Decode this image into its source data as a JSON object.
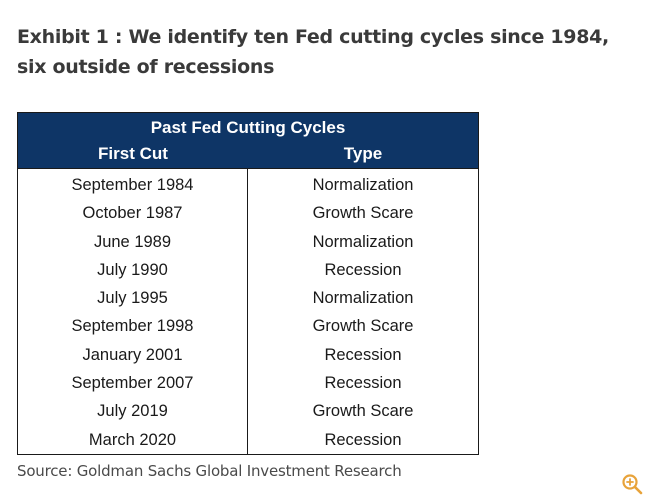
{
  "exhibit": {
    "title": "Exhibit 1 : We identify ten Fed cutting cycles since 1984, six outside of recessions"
  },
  "table": {
    "caption": "Past Fed Cutting Cycles",
    "columns": [
      "First Cut",
      "Type"
    ],
    "rows": [
      {
        "first_cut": "September 1984",
        "type": "Normalization"
      },
      {
        "first_cut": "October 1987",
        "type": "Growth Scare"
      },
      {
        "first_cut": "June 1989",
        "type": "Normalization"
      },
      {
        "first_cut": "July 1990",
        "type": "Recession"
      },
      {
        "first_cut": "July 1995",
        "type": "Normalization"
      },
      {
        "first_cut": "September 1998",
        "type": "Growth Scare"
      },
      {
        "first_cut": "January 2001",
        "type": "Recession"
      },
      {
        "first_cut": "September 2007",
        "type": "Recession"
      },
      {
        "first_cut": "July 2019",
        "type": "Growth Scare"
      },
      {
        "first_cut": "March 2020",
        "type": "Recession"
      }
    ],
    "colors": {
      "header_bg": "#0e3566",
      "header_text": "#ffffff"
    }
  },
  "source": {
    "text": "Source: Goldman Sachs Global Investment Research"
  },
  "icons": {
    "zoom": "zoom-in-icon",
    "accent": "#e8a33a"
  }
}
